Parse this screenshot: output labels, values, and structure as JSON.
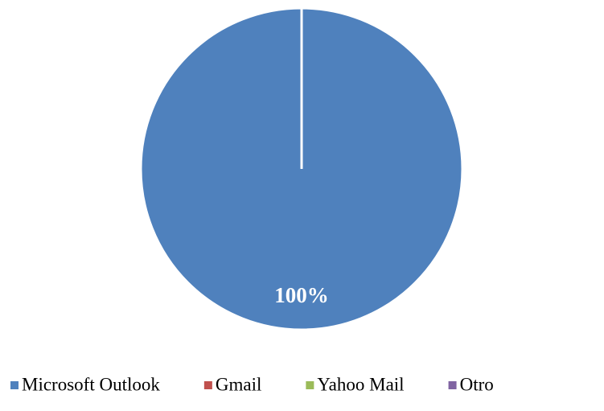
{
  "chart_data": {
    "type": "pie",
    "categories": [
      "Microsoft Outlook",
      "Gmail",
      "Yahoo Mail",
      "Otro"
    ],
    "values": [
      100,
      0,
      0,
      0
    ],
    "value_labels": [
      "100%",
      null,
      null,
      null
    ],
    "colors": [
      "#4f81bd",
      "#c0504d",
      "#9bbb59",
      "#8064a2"
    ],
    "legend": "bottom"
  }
}
